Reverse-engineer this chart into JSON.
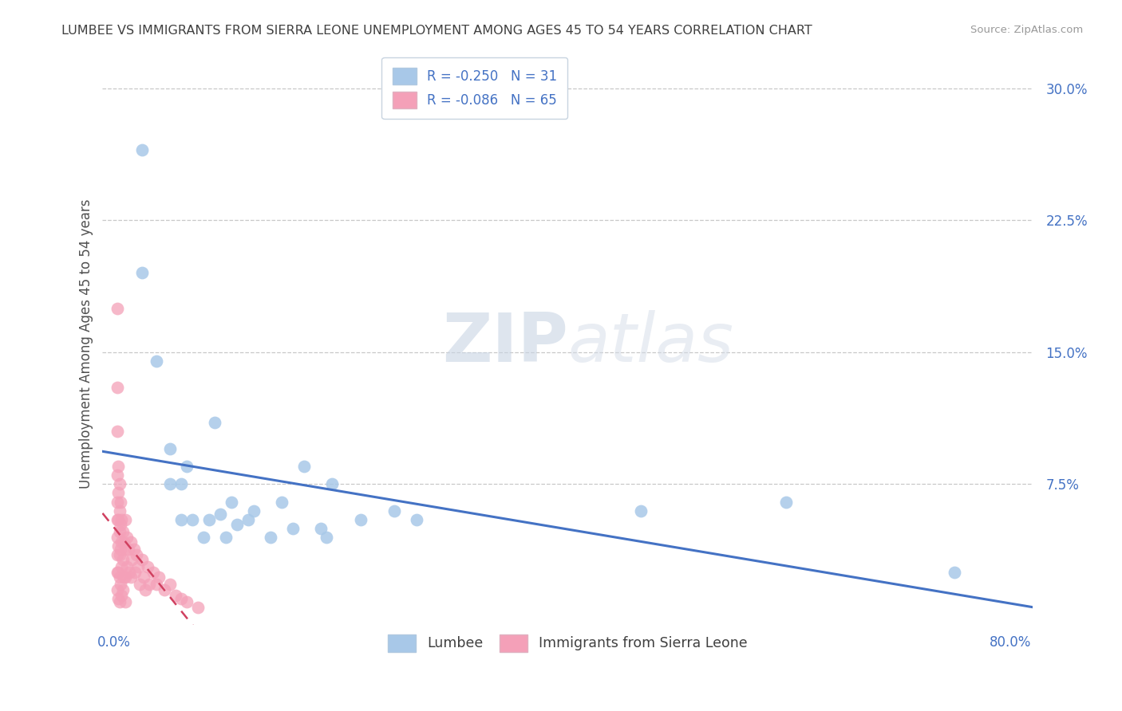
{
  "title": "LUMBEE VS IMMIGRANTS FROM SIERRA LEONE UNEMPLOYMENT AMONG AGES 45 TO 54 YEARS CORRELATION CHART",
  "source": "Source: ZipAtlas.com",
  "ylabel": "Unemployment Among Ages 45 to 54 years",
  "xlim": [
    -0.01,
    0.82
  ],
  "ylim": [
    -0.005,
    0.315
  ],
  "xticks": [
    0.0,
    0.8
  ],
  "xticklabels": [
    "0.0%",
    "80.0%"
  ],
  "yticks": [
    0.075,
    0.15,
    0.225,
    0.3
  ],
  "yticklabels": [
    "7.5%",
    "15.0%",
    "22.5%",
    "30.0%"
  ],
  "grid_yticks": [
    0.075,
    0.15,
    0.225,
    0.3
  ],
  "lumbee_R": -0.25,
  "lumbee_N": 31,
  "sierra_leone_R": -0.086,
  "sierra_leone_N": 65,
  "lumbee_color": "#a8c8e8",
  "sierra_leone_color": "#f4a0b8",
  "lumbee_line_color": "#4472c4",
  "sierra_leone_line_color": "#d04060",
  "background_color": "#ffffff",
  "grid_color": "#c8c8c8",
  "title_color": "#404040",
  "axis_label_color": "#505050",
  "tick_label_color": "#4472c4",
  "watermark_zip": "ZIP",
  "watermark_atlas": "atlas",
  "lumbee_x": [
    0.025,
    0.025,
    0.038,
    0.05,
    0.05,
    0.06,
    0.06,
    0.065,
    0.07,
    0.08,
    0.085,
    0.09,
    0.095,
    0.1,
    0.105,
    0.11,
    0.12,
    0.125,
    0.14,
    0.15,
    0.16,
    0.17,
    0.185,
    0.19,
    0.195,
    0.22,
    0.25,
    0.27,
    0.47,
    0.6,
    0.75
  ],
  "lumbee_y": [
    0.265,
    0.195,
    0.145,
    0.095,
    0.075,
    0.075,
    0.055,
    0.085,
    0.055,
    0.045,
    0.055,
    0.11,
    0.058,
    0.045,
    0.065,
    0.052,
    0.055,
    0.06,
    0.045,
    0.065,
    0.05,
    0.085,
    0.05,
    0.045,
    0.075,
    0.055,
    0.06,
    0.055,
    0.06,
    0.065,
    0.025
  ],
  "sierra_leone_x": [
    0.003,
    0.003,
    0.003,
    0.003,
    0.003,
    0.003,
    0.003,
    0.003,
    0.003,
    0.003,
    0.004,
    0.004,
    0.004,
    0.004,
    0.004,
    0.004,
    0.005,
    0.005,
    0.005,
    0.005,
    0.005,
    0.005,
    0.006,
    0.006,
    0.006,
    0.006,
    0.007,
    0.007,
    0.007,
    0.007,
    0.008,
    0.008,
    0.008,
    0.009,
    0.009,
    0.01,
    0.01,
    0.01,
    0.01,
    0.012,
    0.012,
    0.013,
    0.014,
    0.015,
    0.015,
    0.016,
    0.018,
    0.019,
    0.02,
    0.022,
    0.023,
    0.025,
    0.027,
    0.028,
    0.03,
    0.032,
    0.035,
    0.038,
    0.04,
    0.045,
    0.05,
    0.055,
    0.06,
    0.065,
    0.075
  ],
  "sierra_leone_y": [
    0.175,
    0.13,
    0.105,
    0.08,
    0.065,
    0.055,
    0.045,
    0.035,
    0.025,
    0.015,
    0.085,
    0.07,
    0.055,
    0.04,
    0.025,
    0.01,
    0.075,
    0.06,
    0.048,
    0.035,
    0.022,
    0.008,
    0.065,
    0.052,
    0.038,
    0.018,
    0.055,
    0.042,
    0.028,
    0.012,
    0.048,
    0.032,
    0.015,
    0.042,
    0.022,
    0.055,
    0.038,
    0.022,
    0.008,
    0.045,
    0.028,
    0.038,
    0.025,
    0.042,
    0.022,
    0.032,
    0.038,
    0.025,
    0.035,
    0.028,
    0.018,
    0.032,
    0.022,
    0.015,
    0.028,
    0.018,
    0.025,
    0.018,
    0.022,
    0.015,
    0.018,
    0.012,
    0.01,
    0.008,
    0.005
  ]
}
